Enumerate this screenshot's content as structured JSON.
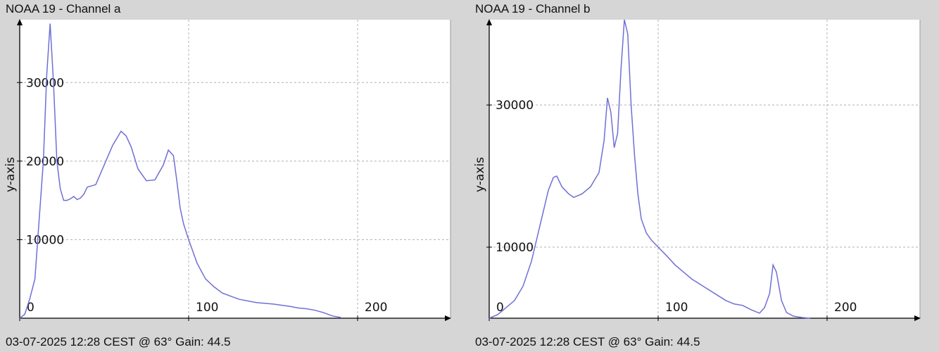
{
  "panels": [
    {
      "title": "NOAA 19 - Channel a",
      "footer": "03-07-2025 12:28 CEST @ 63° Gain: 44.5"
    },
    {
      "title": "NOAA 19 - Channel b",
      "footer": "03-07-2025 12:28 CEST @ 63° Gain: 44.5"
    }
  ],
  "colors": {
    "line": "#6f6fd6",
    "background": "#d6d6d6",
    "plot": "#ffffff",
    "grid": "#b0b0b0"
  },
  "chart_data": [
    {
      "type": "line",
      "title": "NOAA 19 - Channel a",
      "xlabel": "",
      "ylabel": "y-axis",
      "xlim": [
        0,
        255
      ],
      "ylim": [
        0,
        38000
      ],
      "grid": true,
      "xticks": [
        0,
        100,
        200
      ],
      "yticks": [
        10000,
        20000,
        30000
      ],
      "xtick_labels": [
        "0",
        "100",
        "200"
      ],
      "ytick_labels": [
        "10000",
        "20000",
        "30000"
      ],
      "series": [
        {
          "x": [
            0,
            3,
            6,
            9,
            12,
            14,
            16,
            18,
            20,
            22,
            24,
            26,
            28,
            30,
            32,
            34,
            36,
            38,
            40,
            45,
            50,
            55,
            60,
            63,
            66,
            70,
            75,
            80,
            85,
            88,
            91,
            93,
            95,
            97,
            100,
            105,
            110,
            115,
            120,
            125,
            130,
            140,
            150,
            160,
            165,
            170,
            175,
            180,
            185,
            190
          ],
          "y": [
            0,
            500,
            2500,
            5000,
            14000,
            20000,
            31000,
            37500,
            30000,
            20000,
            16500,
            15000,
            15000,
            15200,
            15500,
            15100,
            15300,
            15800,
            16700,
            17000,
            19500,
            22000,
            23800,
            23200,
            21800,
            19000,
            17500,
            17600,
            19500,
            21400,
            20700,
            17500,
            14000,
            12000,
            10000,
            7000,
            5000,
            4000,
            3200,
            2800,
            2400,
            2000,
            1800,
            1500,
            1300,
            1200,
            1000,
            700,
            300,
            100
          ]
        }
      ]
    },
    {
      "type": "line",
      "title": "NOAA 19 - Channel b",
      "xlabel": "",
      "ylabel": "y-axis",
      "xlim": [
        0,
        255
      ],
      "ylim": [
        0,
        42000
      ],
      "grid": true,
      "xticks": [
        0,
        100,
        200
      ],
      "yticks": [
        10000,
        30000
      ],
      "xtick_labels": [
        "0",
        "100",
        "200"
      ],
      "ytick_labels": [
        "10000",
        "30000"
      ],
      "series": [
        {
          "x": [
            0,
            5,
            10,
            15,
            20,
            25,
            30,
            35,
            38,
            40,
            43,
            47,
            50,
            55,
            60,
            65,
            68,
            70,
            72,
            74,
            76,
            78,
            80,
            82,
            84,
            86,
            88,
            90,
            93,
            96,
            100,
            105,
            110,
            115,
            120,
            130,
            140,
            145,
            150,
            155,
            160,
            163,
            166,
            168,
            170,
            173,
            176,
            180,
            185,
            190
          ],
          "y": [
            0,
            500,
            1500,
            2500,
            4500,
            8000,
            13000,
            18000,
            19800,
            20000,
            18500,
            17500,
            17000,
            17500,
            18500,
            20500,
            25000,
            31000,
            29000,
            24000,
            26000,
            35000,
            42000,
            40000,
            30000,
            23000,
            17500,
            14000,
            12000,
            11000,
            10000,
            8800,
            7500,
            6500,
            5500,
            4000,
            2500,
            2000,
            1800,
            1200,
            700,
            1500,
            3500,
            7500,
            6500,
            2500,
            800,
            300,
            100,
            0
          ]
        }
      ]
    }
  ]
}
